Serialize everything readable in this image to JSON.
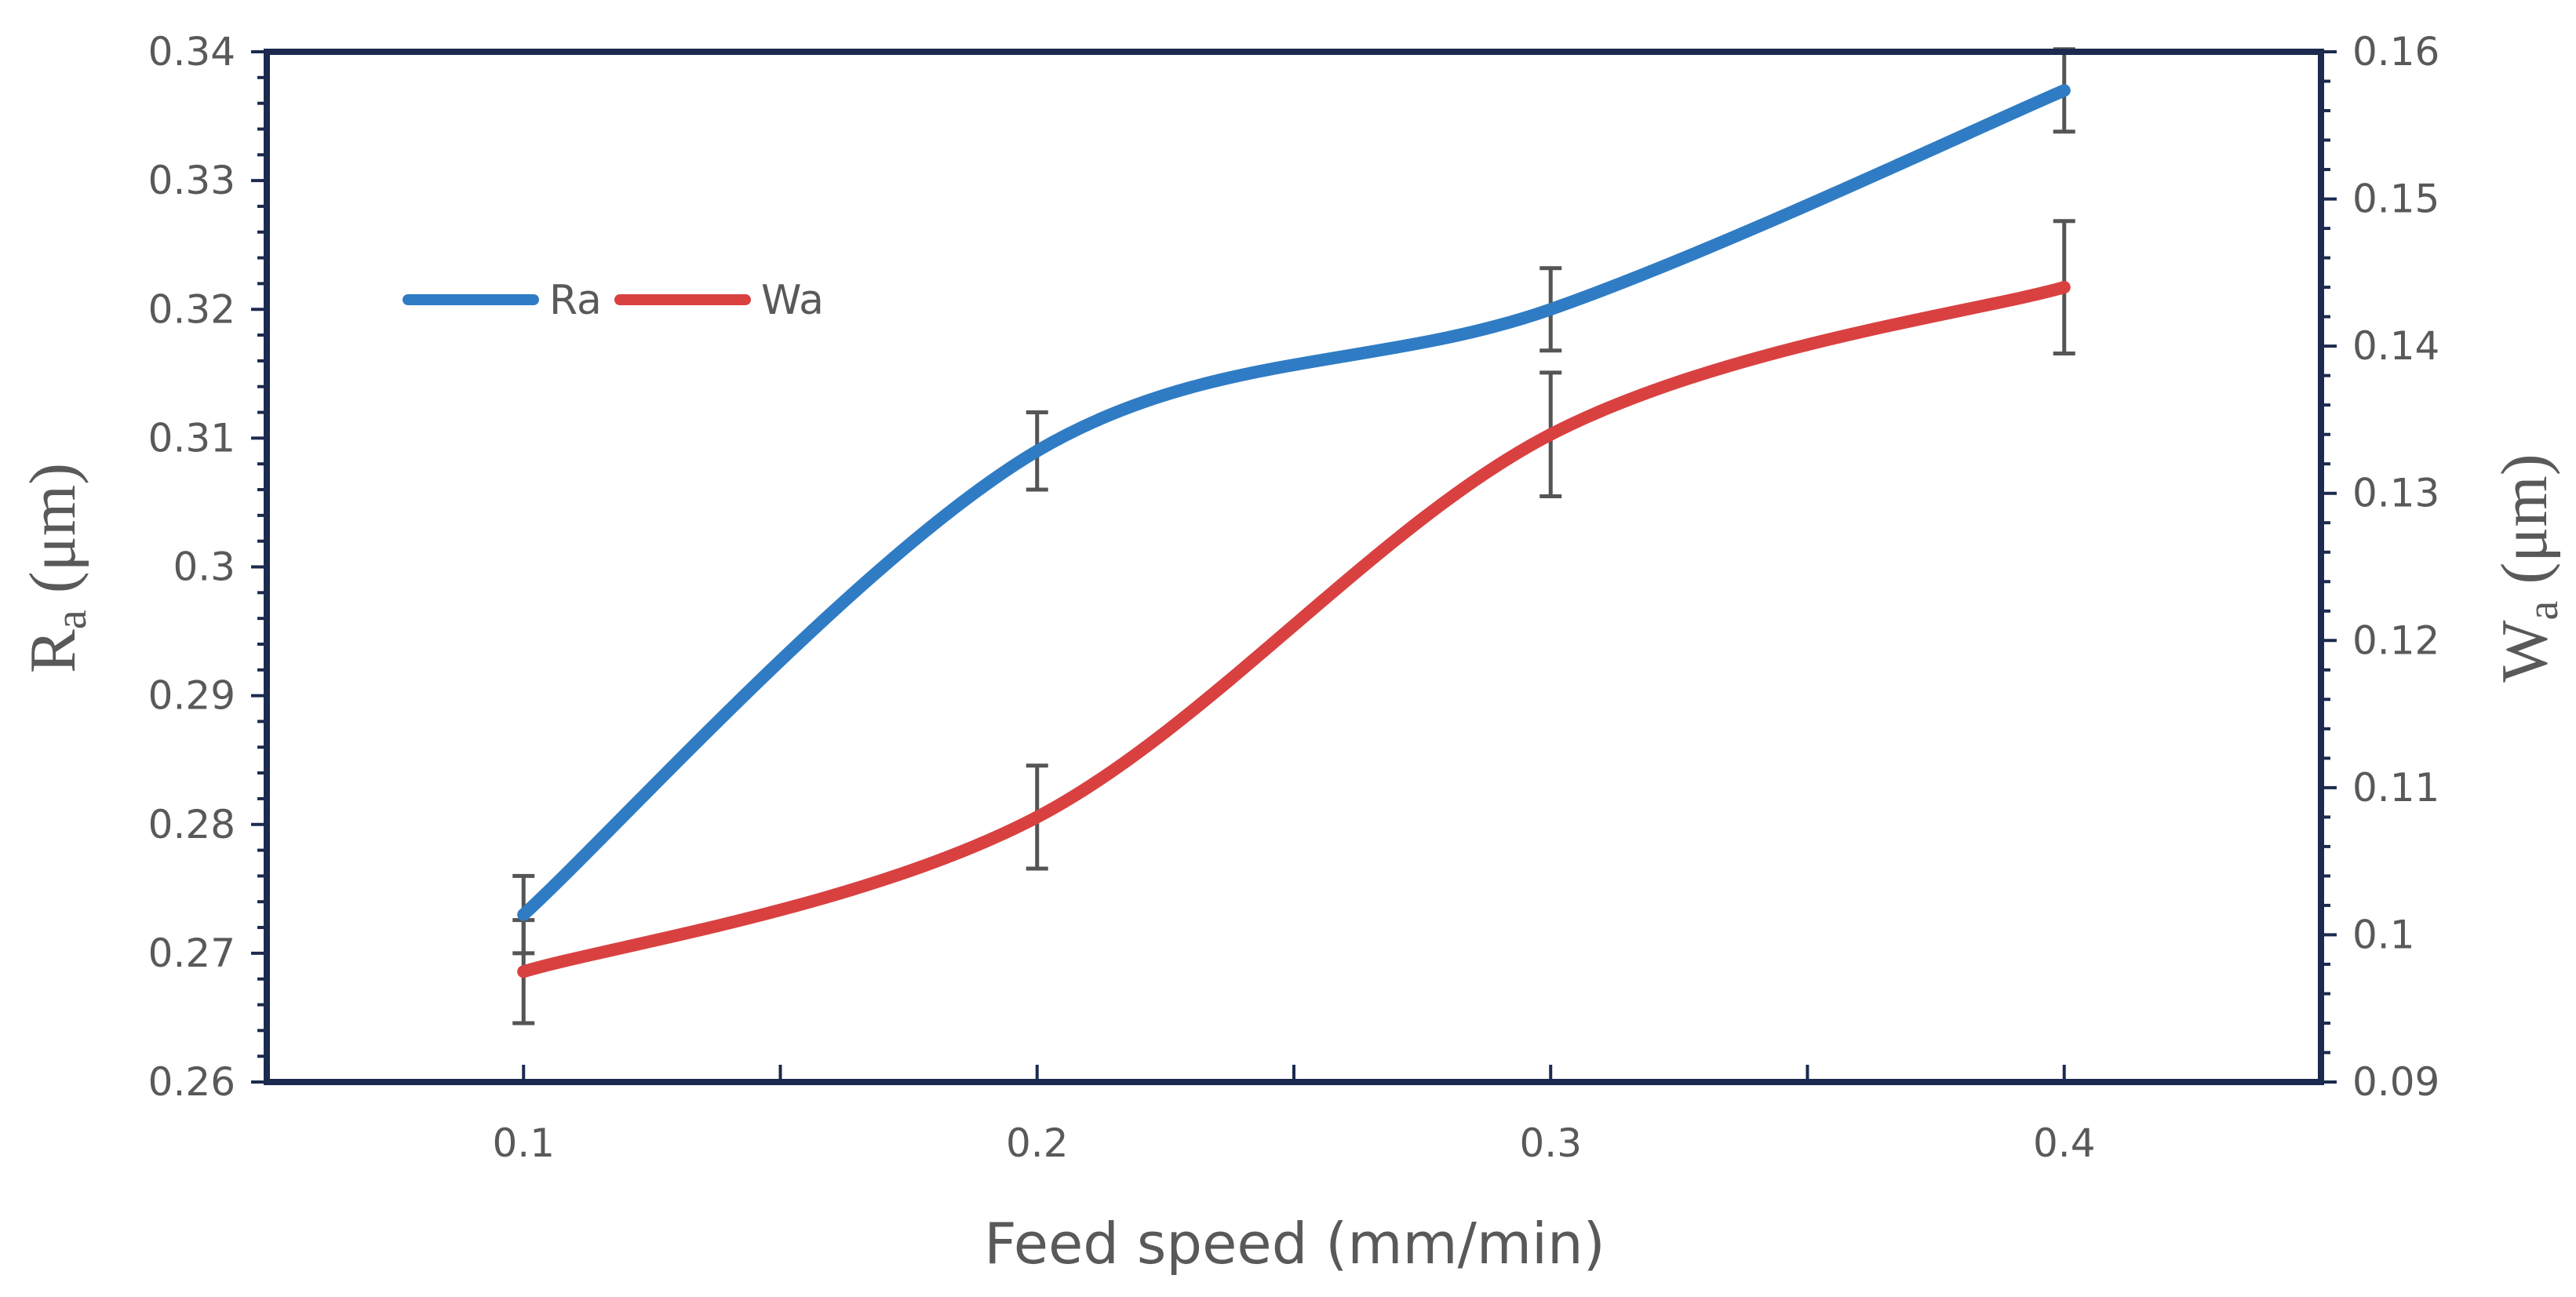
{
  "chart_data": {
    "type": "line",
    "title": "",
    "xlabel": "Feed speed (mm/min)",
    "ylabel_left": {
      "main": "R",
      "sub": "a",
      "unit": " (μm)"
    },
    "ylabel_right": {
      "main": "W",
      "sub": "a",
      "unit": " (μm)"
    },
    "x": [
      0.1,
      0.2,
      0.3,
      0.4
    ],
    "x_tick_labels": [
      "0.1",
      "0.2",
      "0.3",
      "0.4"
    ],
    "xlim": [
      0.05,
      0.45
    ],
    "ylim_left": [
      0.26,
      0.34
    ],
    "ylim_right": [
      0.09,
      0.16
    ],
    "y_left_tick_labels": [
      "0.26",
      "0.27",
      "0.28",
      "0.29",
      "0.3",
      "0.31",
      "0.32",
      "0.33",
      "0.34"
    ],
    "y_right_tick_labels": [
      "0.09",
      "0.1",
      "0.11",
      "0.12",
      "0.13",
      "0.14",
      "0.15",
      "0.16"
    ],
    "grid": false,
    "legend_position": "upper-left",
    "series": [
      {
        "name": "Ra",
        "axis": "left",
        "color": "#2f7cc4",
        "values": [
          0.273,
          0.309,
          0.32,
          0.337
        ],
        "error": [
          0.003,
          0.003,
          0.0032,
          0.0032
        ]
      },
      {
        "name": "Wa",
        "axis": "right",
        "color": "#d94141",
        "values": [
          0.0975,
          0.108,
          0.134,
          0.144
        ],
        "error": [
          0.0035,
          0.0035,
          0.0042,
          0.0045
        ]
      }
    ]
  }
}
